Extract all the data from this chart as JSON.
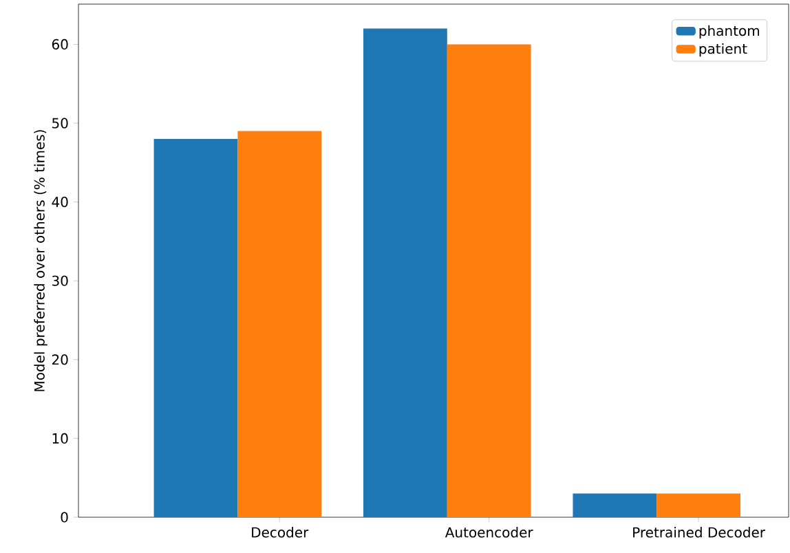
{
  "chart_data": {
    "type": "bar",
    "ylabel": "Model preferred over others (% times)",
    "categories": [
      "Decoder",
      "Autoencoder",
      "Pretrained Decoder"
    ],
    "series": [
      {
        "name": "phantom",
        "color": "#1f77b4",
        "values": [
          48,
          62,
          3
        ]
      },
      {
        "name": "patient",
        "color": "#ff7f0e",
        "values": [
          49,
          60,
          3
        ]
      }
    ],
    "ylim": [
      0,
      65.1
    ],
    "yticks": [
      0,
      10,
      20,
      30,
      40,
      50,
      60
    ],
    "legend": "top right"
  }
}
